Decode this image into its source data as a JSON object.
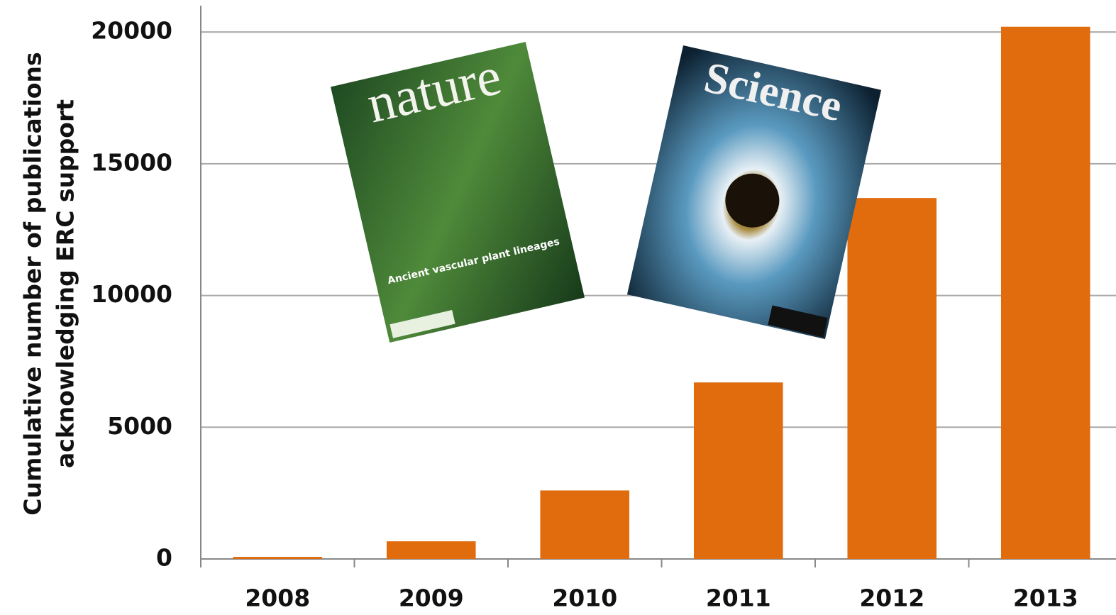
{
  "chart_data": {
    "type": "bar",
    "ylabel": [
      "Cumulative number of publications",
      "acknowledging ERC support"
    ],
    "categories": [
      "2008",
      "2009",
      "2010",
      "2011",
      "2012",
      "2013"
    ],
    "values": [
      80,
      670,
      2600,
      6700,
      13700,
      20200
    ],
    "color": "#e06c0e",
    "ylim": [
      0,
      21000
    ],
    "yticks": [
      0,
      5000,
      10000,
      15000,
      20000
    ],
    "grid": true,
    "annotations": [
      "nature",
      "Ancient vascular plant lineages",
      "Science"
    ]
  }
}
